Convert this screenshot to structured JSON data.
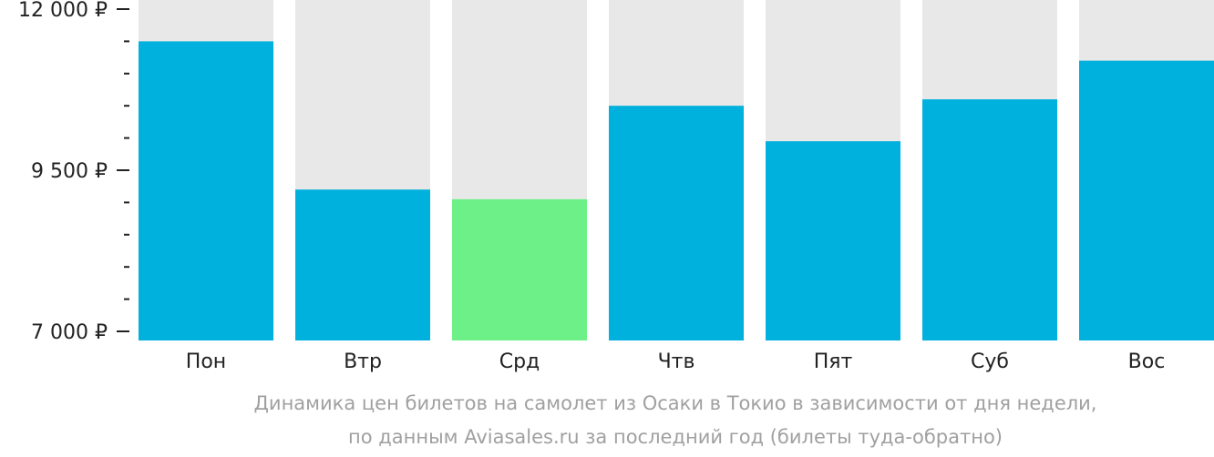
{
  "chart_data": {
    "type": "bar",
    "categories": [
      "Пон",
      "Втр",
      "Срд",
      "Чтв",
      "Пят",
      "Суб",
      "Вос"
    ],
    "values": [
      11500,
      9200,
      9050,
      10500,
      9950,
      10600,
      11200
    ],
    "highlight_index": 2,
    "ylim": [
      7000,
      12000
    ],
    "y_tick_labels": [
      {
        "value": 12000,
        "label": "12 000 ₽"
      },
      {
        "value": 9500,
        "label": "9 500 ₽"
      },
      {
        "value": 7000,
        "label": "7 000 ₽"
      }
    ],
    "minor_tick_step": 500,
    "grid": false,
    "colors": {
      "bar": "#00b0dd",
      "highlight": "#6cf087",
      "background_bar": "#e8e8e8",
      "axis_text": "#222222",
      "caption": "#a0a0a0"
    }
  },
  "caption": {
    "line1": "Динамика цен билетов на самолет из Осаки в Токио в зависимости от дня недели,",
    "line2": "по данным Aviasales.ru за последний год (билеты туда-обратно)"
  }
}
